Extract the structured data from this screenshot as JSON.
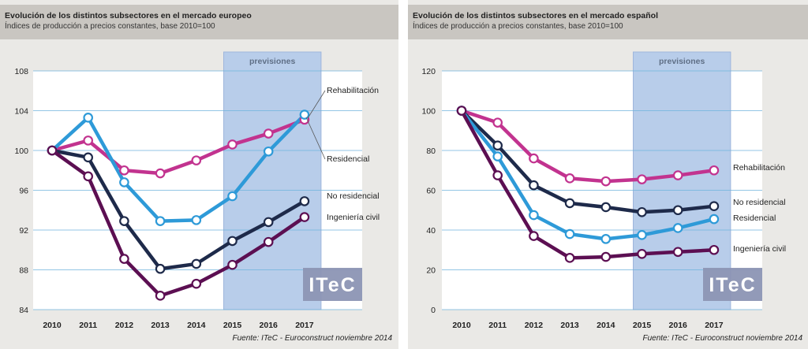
{
  "charts": [
    {
      "title": "Evolución de los distintos subsectores en el mercado europeo",
      "subtitle": "Índices de producción a precios constantes, base 2010=100",
      "forecast_label": "previsiones",
      "source": "Fuente: ITeC - Euroconstruct noviembre 2014",
      "logo": "ITeC"
    },
    {
      "title": "Evolución de los distintos subsectores en el mercado español",
      "subtitle": "Índices de producción a precios constantes, base 2010=100",
      "forecast_label": "previsiones",
      "source": "Fuente: ITeC - Euroconstruct noviembre 2014",
      "logo": "ITeC"
    }
  ],
  "chart_data": [
    {
      "type": "line",
      "title": "Evolución de los distintos subsectores en el mercado europeo",
      "x": [
        2010,
        2011,
        2012,
        2013,
        2014,
        2015,
        2016,
        2017
      ],
      "ylim": [
        84,
        108
      ],
      "yticks": [
        84,
        88,
        92,
        96,
        100,
        104,
        108
      ],
      "forecast_range": [
        2015,
        2017
      ],
      "series": [
        {
          "name": "Rehabilitación",
          "color": "#c2338f",
          "values": [
            100,
            101,
            98,
            97.7,
            99,
            100.6,
            101.7,
            103.1
          ]
        },
        {
          "name": "Residencial",
          "color": "#2e9ad8",
          "values": [
            100,
            103.3,
            96.8,
            92.9,
            93,
            95.4,
            99.9,
            103.6
          ]
        },
        {
          "name": "No residencial",
          "color": "#1e2a4a",
          "values": [
            100,
            99.3,
            92.9,
            88.1,
            88.6,
            90.9,
            92.8,
            94.9
          ]
        },
        {
          "name": "Ingeniería civil",
          "color": "#5c0f52",
          "values": [
            100,
            97.4,
            89.1,
            85.4,
            86.6,
            88.5,
            90.8,
            93.3
          ]
        }
      ]
    },
    {
      "type": "line",
      "title": "Evolución de los distintos subsectores en el mercado español",
      "x": [
        2010,
        2011,
        2012,
        2013,
        2014,
        2015,
        2016,
        2017
      ],
      "ylim": [
        0,
        120
      ],
      "yticks": [
        0,
        20,
        40,
        60,
        80,
        100,
        120
      ],
      "forecast_range": [
        2015,
        2017
      ],
      "series": [
        {
          "name": "Rehabilitación",
          "color": "#c2338f",
          "values": [
            100,
            94,
            76,
            66,
            64.5,
            65.5,
            67.5,
            70
          ]
        },
        {
          "name": "No residencial",
          "color": "#1e2a4a",
          "values": [
            100,
            82.5,
            62.5,
            53.5,
            51.5,
            49,
            50,
            52
          ]
        },
        {
          "name": "Residencial",
          "color": "#2e9ad8",
          "values": [
            100,
            77,
            47.5,
            38,
            35.5,
            37.5,
            41,
            45.5
          ]
        },
        {
          "name": "Ingeniería civil",
          "color": "#5c0f52",
          "values": [
            100,
            67.5,
            37,
            26,
            26.5,
            28,
            29,
            30
          ]
        }
      ]
    }
  ]
}
